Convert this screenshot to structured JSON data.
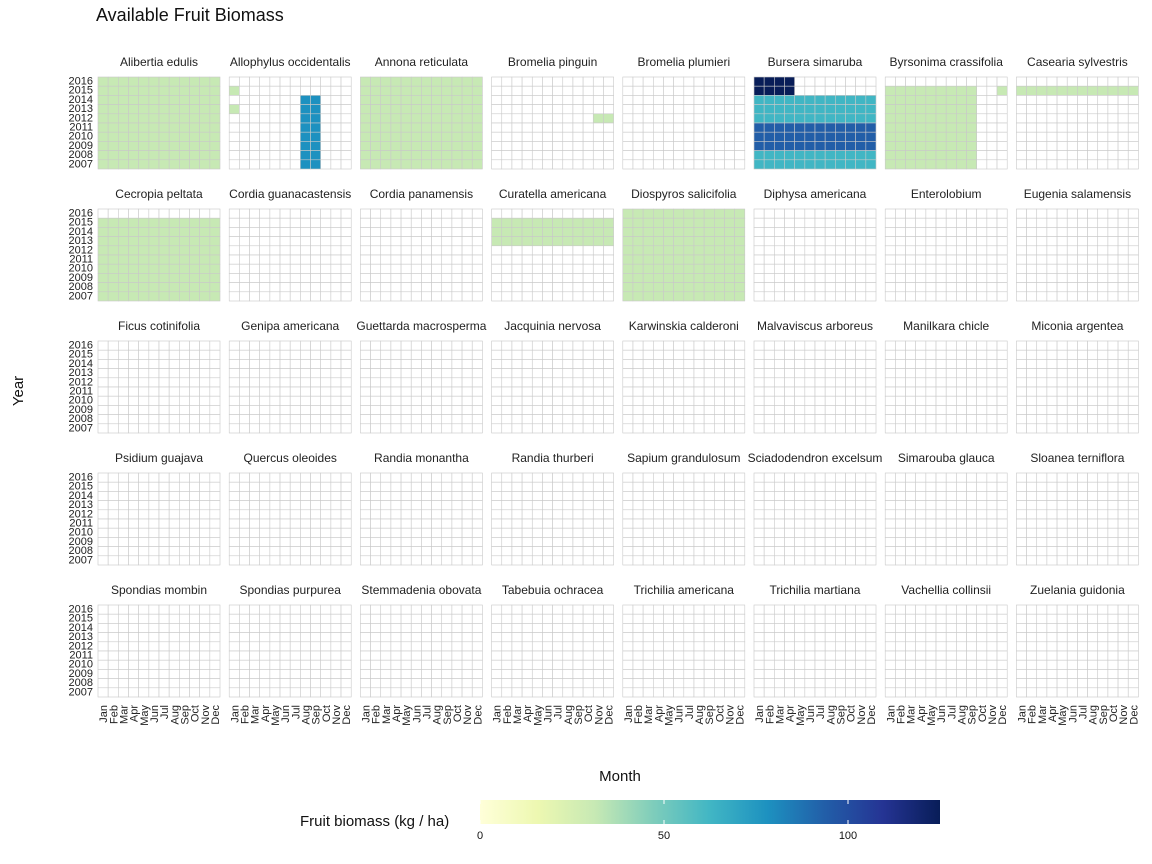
{
  "chart_data": {
    "type": "heatmap",
    "title": "Available Fruit Biomass",
    "xlabel": "Month",
    "ylabel": "Year",
    "months": [
      "Jan",
      "Feb",
      "Mar",
      "Apr",
      "May",
      "Jun",
      "Jul",
      "Aug",
      "Sep",
      "Oct",
      "Nov",
      "Dec"
    ],
    "years": [
      2016,
      2015,
      2014,
      2013,
      2012,
      2011,
      2010,
      2009,
      2008,
      2007
    ],
    "year_labels": [
      "2016",
      "2015",
      "2014",
      "2013",
      "2012",
      "2011",
      "2010",
      "2009",
      "2008",
      "2007"
    ],
    "legend": {
      "title": "Fruit biomass (kg / ha)",
      "ticks": [
        0,
        50,
        100
      ],
      "max": 125,
      "colors": [
        "#ffffd9",
        "#edf8b1",
        "#c7e9b4",
        "#7fcdbb",
        "#41b6c4",
        "#1d91c0",
        "#225ea8",
        "#253494",
        "#081d58"
      ]
    },
    "panels": [
      {
        "name": "Alibertia edulis",
        "rows": [
          "333333333333",
          "333333333333",
          "333333333333",
          "333333333333",
          "333333333333",
          "333333333333",
          "333333333333",
          "333333333333",
          "333333333333",
          "333333333333"
        ]
      },
      {
        "name": "Allophylus occidentalis",
        "rows": [
          "000000000000",
          "300000000000",
          "000000066000",
          "300000066000",
          "000000066000",
          "000000066000",
          "000000066000",
          "000000066000",
          "000000066000",
          "000000066000"
        ]
      },
      {
        "name": "Annona reticulata",
        "rows": [
          "333333333333",
          "333333333333",
          "333333333333",
          "333333333333",
          "333333333333",
          "333333333333",
          "333333333333",
          "333333333333",
          "333333333333",
          "333333333333"
        ]
      },
      {
        "name": "Bromelia pinguin",
        "rows": [
          "000000000000",
          "000000000000",
          "000000000000",
          "000000000000",
          "000000000033",
          "000000000000",
          "000000000000",
          "000000000000",
          "000000000000",
          "000000000000"
        ]
      },
      {
        "name": "Bromelia plumieri",
        "rows": [
          "000000000000",
          "000000000000",
          "000000000000",
          "000000000000",
          "000000000000",
          "000000000000",
          "000000000000",
          "000000000000",
          "000000000000",
          "000000000000"
        ]
      },
      {
        "name": "Bursera simaruba",
        "rows": [
          "999900000000",
          "999900000000",
          "555555555555",
          "555555555555",
          "555555555555",
          "777777777777",
          "777777777777",
          "777777777777",
          "555555555555",
          "555555555555"
        ]
      },
      {
        "name": "Byrsonima crassifolia",
        "rows": [
          "000000000000",
          "333333333003",
          "333333333000",
          "333333333000",
          "333333333000",
          "333333333000",
          "333333333000",
          "333333333000",
          "333333333000",
          "333333333000"
        ]
      },
      {
        "name": "Casearia sylvestris",
        "rows": [
          "000000000000",
          "333333333333",
          "000000000000",
          "000000000000",
          "000000000000",
          "000000000000",
          "000000000000",
          "000000000000",
          "000000000000",
          "000000000000"
        ]
      },
      {
        "name": "Cecropia peltata",
        "rows": [
          "000000000000",
          "333333333333",
          "333333333333",
          "333333333333",
          "333333333333",
          "333333333333",
          "333333333333",
          "333333333333",
          "333333333333",
          "333333333333"
        ]
      },
      {
        "name": "Cordia guanacastensis",
        "rows": [
          "000000000000",
          "000000000000",
          "000000000000",
          "000000000000",
          "000000000000",
          "000000000000",
          "000000000000",
          "000000000000",
          "000000000000",
          "000000000000"
        ]
      },
      {
        "name": "Cordia panamensis",
        "rows": [
          "000000000000",
          "000000000000",
          "000000000000",
          "000000000000",
          "000000000000",
          "000000000000",
          "000000000000",
          "000000000000",
          "000000000000",
          "000000000000"
        ]
      },
      {
        "name": "Curatella americana",
        "rows": [
          "000000000000",
          "333333333333",
          "333333333333",
          "333333333333",
          "000000000000",
          "000000000000",
          "000000000000",
          "000000000000",
          "000000000000",
          "000000000000"
        ]
      },
      {
        "name": "Diospyros salicifolia",
        "rows": [
          "333333333333",
          "333333333333",
          "333333333333",
          "333333333333",
          "333333333333",
          "333333333333",
          "333333333333",
          "333333333333",
          "333333333333",
          "333333333333"
        ]
      },
      {
        "name": "Diphysa americana",
        "rows": [
          "000000000000",
          "000000000000",
          "000000000000",
          "000000000000",
          "000000000000",
          "000000000000",
          "000000000000",
          "000000000000",
          "000000000000",
          "000000000000"
        ]
      },
      {
        "name": "Enterolobium",
        "rows": [
          "000000000000",
          "000000000000",
          "000000000000",
          "000000000000",
          "000000000000",
          "000000000000",
          "000000000000",
          "000000000000",
          "000000000000",
          "000000000000"
        ]
      },
      {
        "name": "Eugenia salamensis",
        "rows": [
          "000000000000",
          "000000000000",
          "000000000000",
          "000000000000",
          "000000000000",
          "000000000000",
          "000000000000",
          "000000000000",
          "000000000000",
          "000000000000"
        ]
      },
      {
        "name": "Ficus cotinifolia",
        "rows": [
          "000000000000",
          "000000000000",
          "000000000000",
          "000000000000",
          "000000000000",
          "000000000000",
          "000000000000",
          "000000000000",
          "000000000000",
          "000000000000"
        ]
      },
      {
        "name": "Genipa americana",
        "rows": [
          "000000000000",
          "000000000000",
          "000000000000",
          "000000000000",
          "000000000000",
          "000000000000",
          "000000000000",
          "000000000000",
          "000000000000",
          "000000000000"
        ]
      },
      {
        "name": "Guettarda macrosperma",
        "rows": [
          "000000000000",
          "000000000000",
          "000000000000",
          "000000000000",
          "000000000000",
          "000000000000",
          "000000000000",
          "000000000000",
          "000000000000",
          "000000000000"
        ]
      },
      {
        "name": "Jacquinia nervosa",
        "rows": [
          "000000000000",
          "000000000000",
          "000000000000",
          "000000000000",
          "000000000000",
          "000000000000",
          "000000000000",
          "000000000000",
          "000000000000",
          "000000000000"
        ]
      },
      {
        "name": "Karwinskia calderoni",
        "rows": [
          "000000000000",
          "000000000000",
          "000000000000",
          "000000000000",
          "000000000000",
          "000000000000",
          "000000000000",
          "000000000000",
          "000000000000",
          "000000000000"
        ]
      },
      {
        "name": "Malvaviscus arboreus",
        "rows": [
          "000000000000",
          "000000000000",
          "000000000000",
          "000000000000",
          "000000000000",
          "000000000000",
          "000000000000",
          "000000000000",
          "000000000000",
          "000000000000"
        ]
      },
      {
        "name": "Manilkara chicle",
        "rows": [
          "000000000000",
          "000000000000",
          "000000000000",
          "000000000000",
          "000000000000",
          "000000000000",
          "000000000000",
          "000000000000",
          "000000000000",
          "000000000000"
        ]
      },
      {
        "name": "Miconia argentea",
        "rows": [
          "000000000000",
          "000000000000",
          "000000000000",
          "000000000000",
          "000000000000",
          "000000000000",
          "000000000000",
          "000000000000",
          "000000000000",
          "000000000000"
        ]
      },
      {
        "name": "Psidium guajava",
        "rows": [
          "000000000000",
          "000000000000",
          "000000000000",
          "000000000000",
          "000000000000",
          "000000000000",
          "000000000000",
          "000000000000",
          "000000000000",
          "000000000000"
        ]
      },
      {
        "name": "Quercus oleoides",
        "rows": [
          "000000000000",
          "000000000000",
          "000000000000",
          "000000000000",
          "000000000000",
          "000000000000",
          "000000000000",
          "000000000000",
          "000000000000",
          "000000000000"
        ]
      },
      {
        "name": "Randia monantha",
        "rows": [
          "000000000000",
          "000000000000",
          "000000000000",
          "000000000000",
          "000000000000",
          "000000000000",
          "000000000000",
          "000000000000",
          "000000000000",
          "000000000000"
        ]
      },
      {
        "name": "Randia thurberi",
        "rows": [
          "000000000000",
          "000000000000",
          "000000000000",
          "000000000000",
          "000000000000",
          "000000000000",
          "000000000000",
          "000000000000",
          "000000000000",
          "000000000000"
        ]
      },
      {
        "name": "Sapium grandulosum",
        "rows": [
          "000000000000",
          "000000000000",
          "000000000000",
          "000000000000",
          "000000000000",
          "000000000000",
          "000000000000",
          "000000000000",
          "000000000000",
          "000000000000"
        ]
      },
      {
        "name": "Sciadodendron excelsum",
        "rows": [
          "000000000000",
          "000000000000",
          "000000000000",
          "000000000000",
          "000000000000",
          "000000000000",
          "000000000000",
          "000000000000",
          "000000000000",
          "000000000000"
        ]
      },
      {
        "name": "Simarouba glauca",
        "rows": [
          "000000000000",
          "000000000000",
          "000000000000",
          "000000000000",
          "000000000000",
          "000000000000",
          "000000000000",
          "000000000000",
          "000000000000",
          "000000000000"
        ]
      },
      {
        "name": "Sloanea terniflora",
        "rows": [
          "000000000000",
          "000000000000",
          "000000000000",
          "000000000000",
          "000000000000",
          "000000000000",
          "000000000000",
          "000000000000",
          "000000000000",
          "000000000000"
        ]
      },
      {
        "name": "Spondias mombin",
        "rows": [
          "000000000000",
          "000000000000",
          "000000000000",
          "000000000000",
          "000000000000",
          "000000000000",
          "000000000000",
          "000000000000",
          "000000000000",
          "000000000000"
        ]
      },
      {
        "name": "Spondias purpurea",
        "rows": [
          "000000000000",
          "000000000000",
          "000000000000",
          "000000000000",
          "000000000000",
          "000000000000",
          "000000000000",
          "000000000000",
          "000000000000",
          "000000000000"
        ]
      },
      {
        "name": "Stemmadenia obovata",
        "rows": [
          "000000000000",
          "000000000000",
          "000000000000",
          "000000000000",
          "000000000000",
          "000000000000",
          "000000000000",
          "000000000000",
          "000000000000",
          "000000000000"
        ]
      },
      {
        "name": "Tabebuia ochracea",
        "rows": [
          "000000000000",
          "000000000000",
          "000000000000",
          "000000000000",
          "000000000000",
          "000000000000",
          "000000000000",
          "000000000000",
          "000000000000",
          "000000000000"
        ]
      },
      {
        "name": "Trichilia americana",
        "rows": [
          "000000000000",
          "000000000000",
          "000000000000",
          "000000000000",
          "000000000000",
          "000000000000",
          "000000000000",
          "000000000000",
          "000000000000",
          "000000000000"
        ]
      },
      {
        "name": "Trichilia martiana",
        "rows": [
          "000000000000",
          "000000000000",
          "000000000000",
          "000000000000",
          "000000000000",
          "000000000000",
          "000000000000",
          "000000000000",
          "000000000000",
          "000000000000"
        ]
      },
      {
        "name": "Vachellia collinsii",
        "rows": [
          "000000000000",
          "000000000000",
          "000000000000",
          "000000000000",
          "000000000000",
          "000000000000",
          "000000000000",
          "000000000000",
          "000000000000",
          "000000000000"
        ]
      },
      {
        "name": "Zuelania guidonia",
        "rows": [
          "000000000000",
          "000000000000",
          "000000000000",
          "000000000000",
          "000000000000",
          "000000000000",
          "000000000000",
          "000000000000",
          "000000000000",
          "000000000000"
        ]
      }
    ]
  }
}
